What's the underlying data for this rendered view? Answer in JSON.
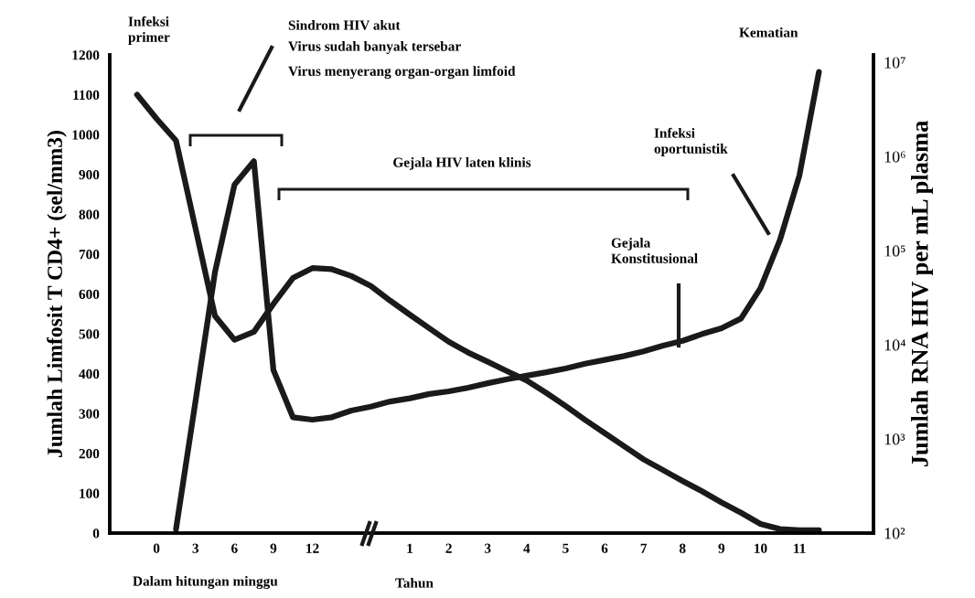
{
  "chart_data": {
    "type": "line",
    "ylabel": "Jumlah Limfosit T CD4+ (sel/mm3)",
    "y2label": "Jumlah RNA HIV per mL plasma",
    "annotations": [
      "Infeksi\nprimer",
      "Sindrom HIV akut",
      "Virus sudah banyak tersebar",
      "Virus menyerang organ-organ limfoid",
      "Gejala HIV laten klinis",
      "Infeksi\noportunistik",
      "Gejala\nKonstitusional",
      "Kematian",
      "Dalam hitungan minggu",
      "Tahun"
    ],
    "categories": [
      null,
      "0",
      null,
      "3",
      null,
      "6",
      null,
      "9",
      null,
      "12",
      null,
      null,
      null,
      null,
      "1",
      null,
      "2",
      null,
      "3",
      null,
      "4",
      null,
      "5",
      null,
      "6",
      null,
      "7",
      null,
      "8",
      null,
      "9",
      null,
      "10",
      null,
      "11",
      null,
      null
    ],
    "ylim": [
      0,
      1200
    ],
    "yticks": [
      0,
      100,
      200,
      300,
      400,
      500,
      600,
      700,
      800,
      900,
      1000,
      1100,
      1200
    ],
    "y2lim": [
      100,
      12000000
    ],
    "y2ticks": [
      {
        "value": 100,
        "label": "10²"
      },
      {
        "value": 1000,
        "label": "10³"
      },
      {
        "value": 10000,
        "label": "10⁴"
      },
      {
        "value": 100000,
        "label": "10⁵"
      },
      {
        "value": 1000000,
        "label": "10⁶"
      },
      {
        "value": 10000000,
        "label": "10⁷"
      }
    ],
    "log": "y2",
    "grid": false,
    "legend": false,
    "marker": "none",
    "line_style": "solid",
    "series": [
      {
        "color": "#1a1a1a",
        "values": [
          1100,
          1040,
          985,
          765,
          545,
          485,
          505,
          575,
          640,
          665,
          662,
          645,
          620,
          583,
          548,
          514,
          480,
          453,
          430,
          406,
          383,
          352,
          319,
          284,
          251,
          218,
          185,
          158,
          131,
          105,
          77,
          51,
          23,
          10,
          7,
          7,
          null
        ]
      },
      {
        "axis": "y2",
        "color": "#1a1a1a",
        "values": [
          null,
          null,
          110,
          2500,
          59000,
          500000,
          890000,
          5400,
          1700,
          1600,
          1700,
          2000,
          2200,
          2500,
          2700,
          3000,
          3200,
          3500,
          3900,
          4300,
          4700,
          5100,
          5600,
          6300,
          6900,
          7600,
          8500,
          9800,
          11000,
          13000,
          15000,
          19000,
          40000,
          130000,
          630000,
          7900000,
          null
        ]
      }
    ]
  }
}
